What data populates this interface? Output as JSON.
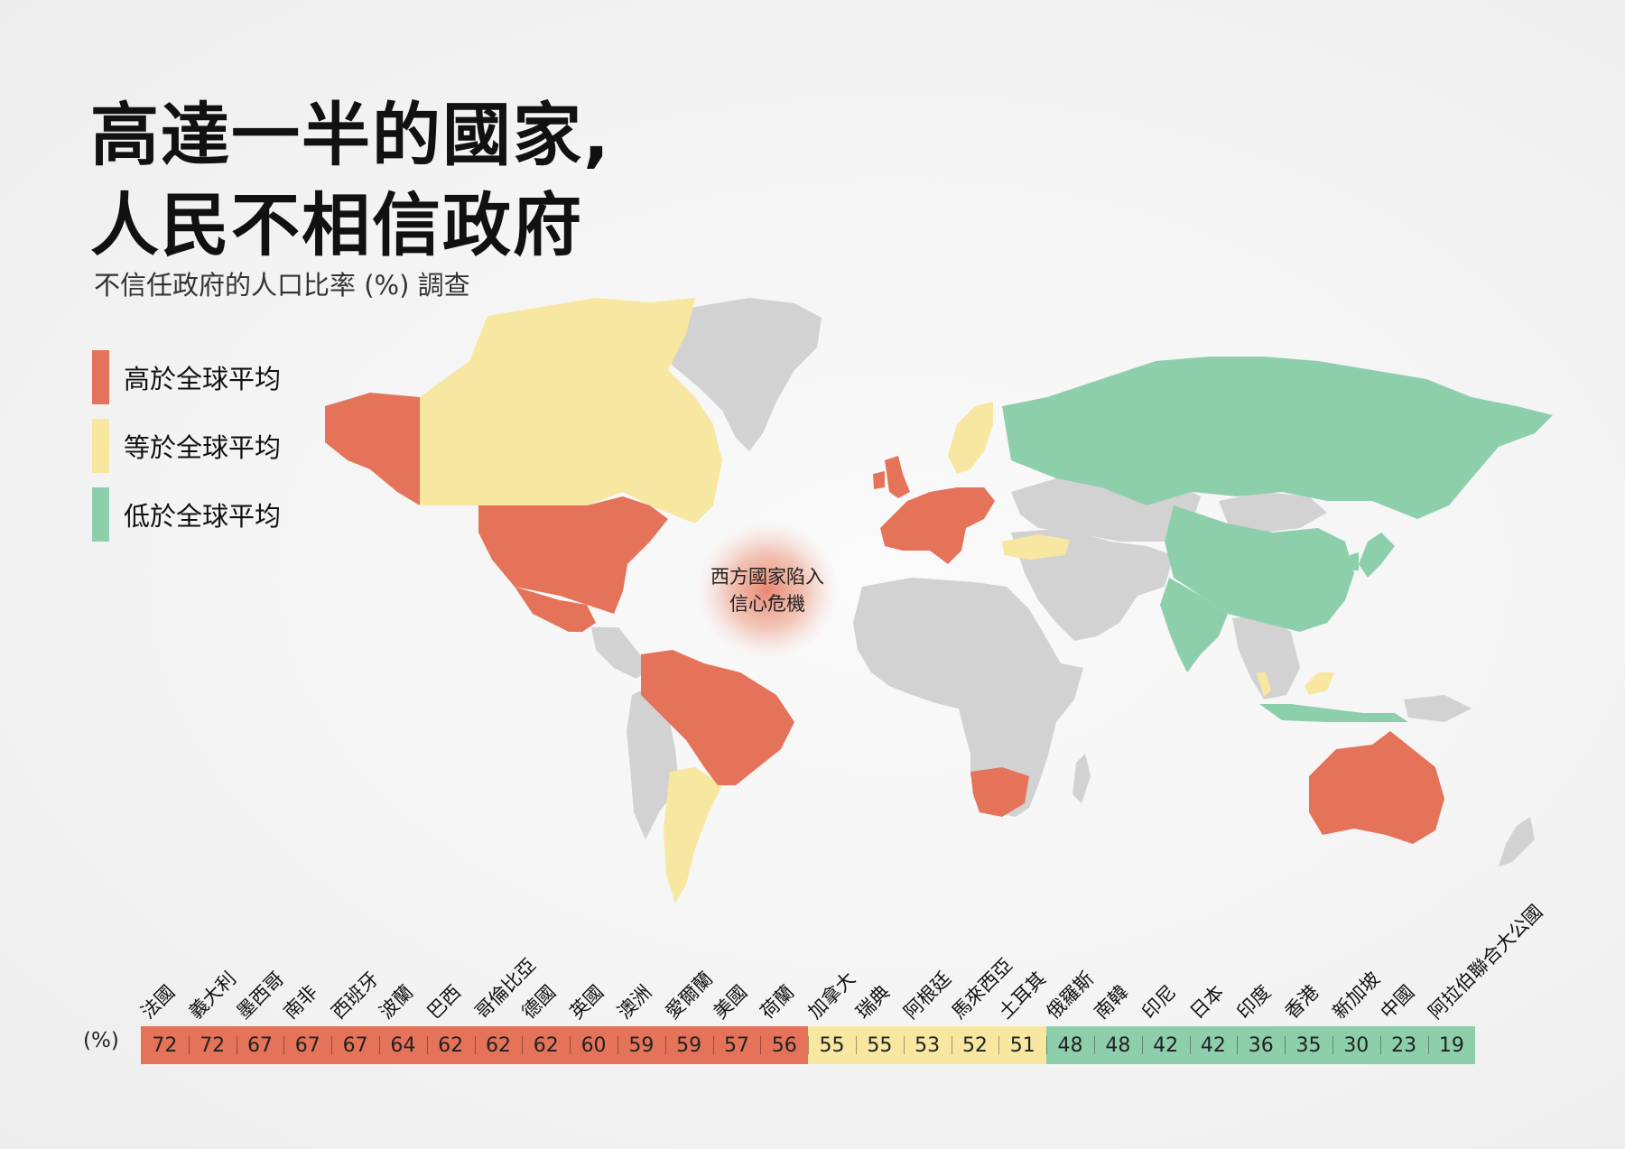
{
  "title": {
    "line1": "高達一半的國家,",
    "line2": "人民不相信政府"
  },
  "subtitle": "不信任政府的人口比率 (%) 調查",
  "legend": [
    {
      "label": "高於全球平均",
      "color": "#e5735a"
    },
    {
      "label": "等於全球平均",
      "color": "#f8e7a0"
    },
    {
      "label": "低於全球平均",
      "color": "#8ecfab"
    }
  ],
  "colors": {
    "high": "#e5735a",
    "equal": "#f8e7a0",
    "low": "#8ecfab",
    "neutral": "#d2d2d2"
  },
  "annotation": {
    "line1": "西方國家陷入",
    "line2": "信心危機"
  },
  "ranking_unit": "(%)",
  "ranking": [
    {
      "name": "法國",
      "value": 72,
      "level": "high"
    },
    {
      "name": "義大利",
      "value": 72,
      "level": "high"
    },
    {
      "name": "墨西哥",
      "value": 67,
      "level": "high"
    },
    {
      "name": "南非",
      "value": 67,
      "level": "high"
    },
    {
      "name": "西班牙",
      "value": 67,
      "level": "high"
    },
    {
      "name": "波蘭",
      "value": 64,
      "level": "high"
    },
    {
      "name": "巴西",
      "value": 62,
      "level": "high"
    },
    {
      "name": "哥倫比亞",
      "value": 62,
      "level": "high"
    },
    {
      "name": "德國",
      "value": 62,
      "level": "high"
    },
    {
      "name": "英國",
      "value": 60,
      "level": "high"
    },
    {
      "name": "澳洲",
      "value": 59,
      "level": "high"
    },
    {
      "name": "愛爾蘭",
      "value": 59,
      "level": "high"
    },
    {
      "name": "美國",
      "value": 57,
      "level": "high"
    },
    {
      "name": "荷蘭",
      "value": 56,
      "level": "high"
    },
    {
      "name": "加拿大",
      "value": 55,
      "level": "equal"
    },
    {
      "name": "瑞典",
      "value": 55,
      "level": "equal"
    },
    {
      "name": "阿根廷",
      "value": 53,
      "level": "equal"
    },
    {
      "name": "馬來西亞",
      "value": 52,
      "level": "equal"
    },
    {
      "name": "土耳其",
      "value": 51,
      "level": "equal"
    },
    {
      "name": "俄羅斯",
      "value": 48,
      "level": "low"
    },
    {
      "name": "南韓",
      "value": 48,
      "level": "low"
    },
    {
      "name": "印尼",
      "value": 42,
      "level": "low"
    },
    {
      "name": "日本",
      "value": 42,
      "level": "low"
    },
    {
      "name": "印度",
      "value": 36,
      "level": "low"
    },
    {
      "name": "香港",
      "value": 35,
      "level": "low"
    },
    {
      "name": "新加坡",
      "value": 30,
      "level": "low"
    },
    {
      "name": "中國",
      "value": 23,
      "level": "low"
    },
    {
      "name": "阿拉伯聯合大公國",
      "value": 19,
      "level": "low"
    }
  ]
}
